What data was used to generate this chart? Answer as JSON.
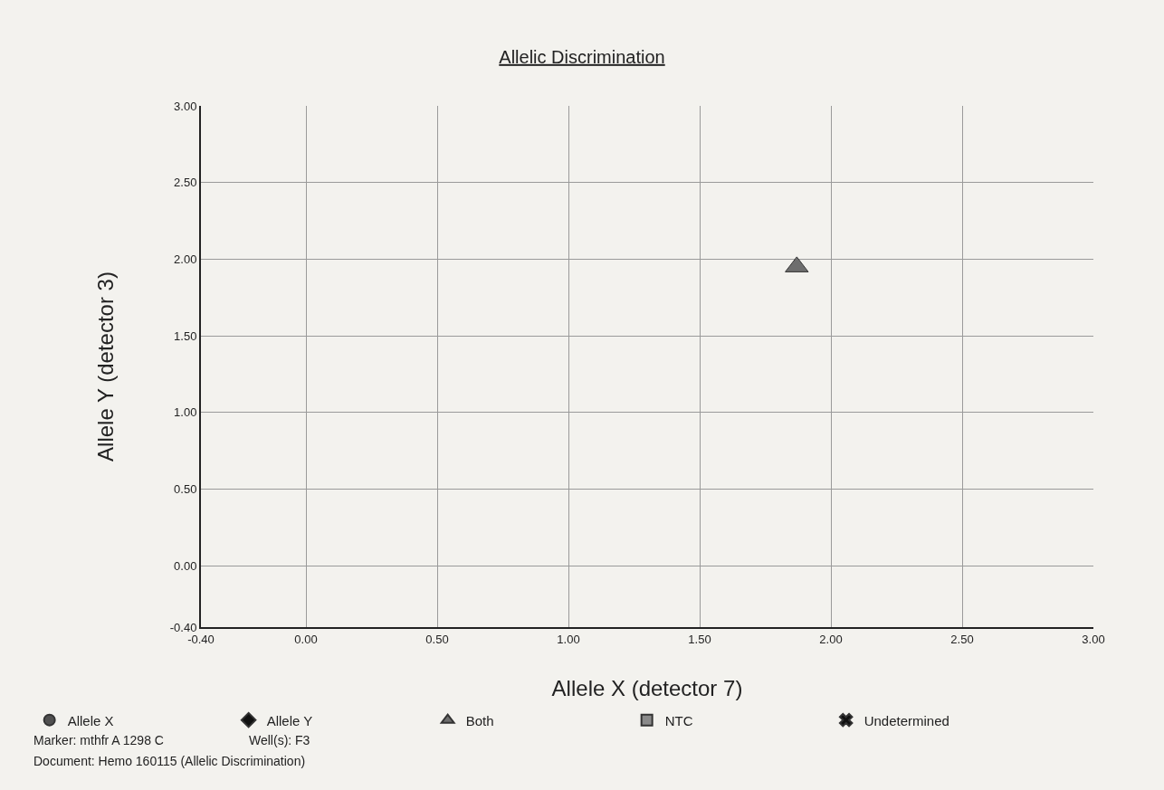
{
  "chart_data": {
    "type": "scatter",
    "title": "Allelic Discrimination",
    "xlabel": "Allele X (detector 7)",
    "ylabel": "Allele Y (detector 3)",
    "series": [
      {
        "name": "Allele X",
        "color": "#505050",
        "marker": "circle"
      },
      {
        "name": "Allele Y",
        "color": "#111111",
        "marker": "diamond"
      },
      {
        "name": "Both",
        "color": "#6e6e6e",
        "marker": "triangle",
        "x": [
          1.87
        ],
        "values": [
          1.95
        ]
      },
      {
        "name": "NTC",
        "color": "#8a8a8a",
        "marker": "square"
      },
      {
        "name": "Undetermined",
        "color": "#111111",
        "marker": "cross"
      }
    ],
    "xlim": [
      -0.4,
      3.0
    ],
    "ylim": [
      -0.4,
      3.0
    ],
    "xticks": [
      {
        "value": -0.4,
        "label": "-0.40"
      },
      {
        "value": 0,
        "label": "0.00"
      },
      {
        "value": 0.5,
        "label": "0.50"
      },
      {
        "value": 1,
        "label": "1.00"
      },
      {
        "value": 1.5,
        "label": "1.50"
      },
      {
        "value": 2,
        "label": "2.00"
      },
      {
        "value": 2.5,
        "label": "2.50"
      },
      {
        "value": 3,
        "label": "3.00"
      }
    ],
    "yticks": [
      {
        "value": -0.4,
        "label": "-0.40"
      },
      {
        "value": 0,
        "label": "0.00"
      },
      {
        "value": 0.5,
        "label": "0.50"
      },
      {
        "value": 1,
        "label": "1.00"
      },
      {
        "value": 1.5,
        "label": "1.50"
      },
      {
        "value": 2,
        "label": "2.00"
      },
      {
        "value": 2.5,
        "label": "2.50"
      },
      {
        "value": 3,
        "label": "3.00"
      }
    ],
    "grid": true,
    "legend": "bottom",
    "annotations": [
      "Marker: mthfr A 1298 C",
      "Well(s): F3",
      "Document: Hemo 160115 (Allelic Discrimination)"
    ]
  }
}
